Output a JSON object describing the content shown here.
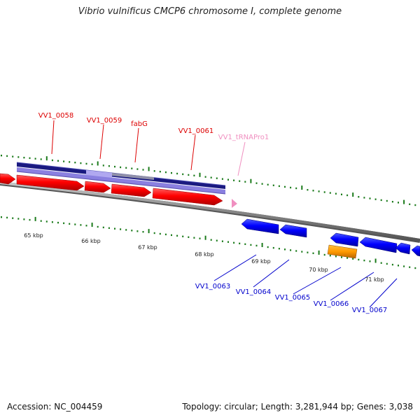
{
  "map": {
    "title": "Vibrio vulnificus CMCP6 chromosome I, complete genome",
    "accession": "Accession: NC_004459",
    "topology": "Topology: circular; Length: 3,281,944 bp; Genes: 3,038"
  },
  "kbp_labels": [
    "65 kbp",
    "66 kbp",
    "67 kbp",
    "68 kbp",
    "69 kbp",
    "70 kbp",
    "71 kbp"
  ],
  "labels_top": [
    {
      "text": "VV1_0058",
      "color": "#dd0000"
    },
    {
      "text": "VV1_0059",
      "color": "#dd0000"
    },
    {
      "text": "fabG",
      "color": "#dd0000"
    },
    {
      "text": "VV1_0061",
      "color": "#dd0000"
    },
    {
      "text": "VV1_tRNAPro1",
      "color": "#f08fc0"
    }
  ],
  "labels_bottom": [
    {
      "text": "VV1_0063",
      "color": "#0000cc"
    },
    {
      "text": "VV1_0064",
      "color": "#0000cc"
    },
    {
      "text": "VV1_0065",
      "color": "#0000cc"
    },
    {
      "text": "VV1_0066",
      "color": "#0000cc"
    },
    {
      "text": "VV1_0067",
      "color": "#0000cc"
    }
  ],
  "colors": {
    "forward_gene": "#ff0000",
    "reverse_gene": "#0000ff",
    "trna": "#f08fc0",
    "orange_feature": "#ff9900",
    "navy_bar": "#1a1a80",
    "lavender_bar": "#8a80e0",
    "backbone": "#888888",
    "tick": "#1a7a1a"
  }
}
